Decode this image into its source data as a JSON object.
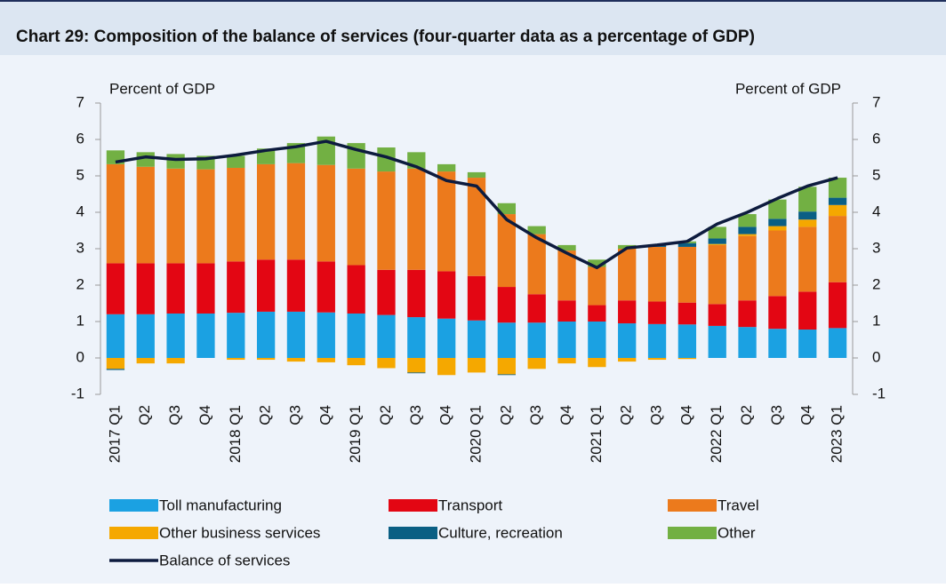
{
  "chart_data": {
    "type": "bar",
    "stacked": true,
    "title": "Chart 29: Composition of the balance of services (four-quarter data as a percentage of GDP)",
    "y_label": "Percent of GDP",
    "y2_label": "Percent of GDP",
    "categories": [
      "2017 Q1",
      "Q2",
      "Q3",
      "Q4",
      "2018 Q1",
      "Q2",
      "Q3",
      "Q4",
      "2019 Q1",
      "Q2",
      "Q3",
      "Q4",
      "2020 Q1",
      "Q2",
      "Q3",
      "Q4",
      "2021 Q1",
      "Q2",
      "Q3",
      "Q4",
      "2022 Q1",
      "Q2",
      "Q3",
      "Q4",
      "2023 Q1"
    ],
    "ylim": [
      -1,
      7
    ],
    "yticks": [
      -1,
      0,
      1,
      2,
      3,
      4,
      5,
      6,
      7
    ],
    "y2lim": [
      -1,
      7
    ],
    "y2ticks": [
      -1,
      0,
      1,
      2,
      3,
      4,
      5,
      6,
      7
    ],
    "series": [
      {
        "name": "Toll manufacturing",
        "color": "#1ba1e2",
        "values": [
          1.2,
          1.2,
          1.22,
          1.22,
          1.24,
          1.27,
          1.27,
          1.25,
          1.22,
          1.18,
          1.12,
          1.08,
          1.03,
          0.97,
          0.97,
          1.0,
          1.0,
          0.95,
          0.93,
          0.92,
          0.88,
          0.85,
          0.8,
          0.78,
          0.82
        ]
      },
      {
        "name": "Transport",
        "color": "#e30613",
        "values": [
          1.4,
          1.4,
          1.38,
          1.38,
          1.41,
          1.43,
          1.43,
          1.4,
          1.33,
          1.24,
          1.3,
          1.3,
          1.22,
          0.98,
          0.78,
          0.58,
          0.45,
          0.63,
          0.62,
          0.6,
          0.6,
          0.73,
          0.9,
          1.04,
          1.26
        ]
      },
      {
        "name": "Travel",
        "color": "#ec7a1c",
        "values": [
          2.72,
          2.65,
          2.6,
          2.58,
          2.57,
          2.62,
          2.65,
          2.65,
          2.65,
          2.7,
          2.78,
          2.74,
          2.7,
          2.0,
          1.65,
          1.37,
          1.05,
          1.42,
          1.5,
          1.53,
          1.62,
          1.77,
          1.8,
          1.78,
          1.82
        ]
      },
      {
        "name": "Other business services",
        "color": "#f5a800",
        "values": [
          -0.3,
          -0.15,
          -0.15,
          0,
          -0.05,
          -0.05,
          -0.1,
          -0.12,
          -0.2,
          -0.28,
          -0.4,
          -0.47,
          -0.4,
          -0.45,
          -0.3,
          -0.15,
          -0.25,
          -0.1,
          -0.05,
          -0.03,
          0.03,
          0.05,
          0.12,
          0.2,
          0.3
        ]
      },
      {
        "name": "Culture, recreation",
        "color": "#0a5f84",
        "values": [
          -0.03,
          0,
          0,
          0,
          0,
          0,
          0,
          0,
          0,
          0,
          -0.02,
          0,
          0,
          -0.02,
          0,
          0,
          0,
          0,
          0.05,
          0.1,
          0.15,
          0.2,
          0.2,
          0.22,
          0.2
        ]
      },
      {
        "name": "Other",
        "color": "#72b043",
        "values": [
          0.38,
          0.4,
          0.4,
          0.37,
          0.33,
          0.43,
          0.55,
          0.78,
          0.7,
          0.66,
          0.45,
          0.2,
          0.15,
          0.3,
          0.22,
          0.15,
          0.2,
          0.1,
          0.02,
          0.05,
          0.32,
          0.35,
          0.53,
          0.68,
          0.55
        ]
      },
      {
        "name": "Balance of services",
        "type": "line",
        "color": "#0d1b3e",
        "values": [
          5.38,
          5.52,
          5.45,
          5.47,
          5.57,
          5.7,
          5.8,
          5.95,
          5.72,
          5.52,
          5.25,
          4.87,
          4.72,
          3.8,
          3.3,
          2.88,
          2.48,
          3.02,
          3.1,
          3.2,
          3.68,
          4.0,
          4.38,
          4.72,
          4.95
        ]
      }
    ]
  }
}
